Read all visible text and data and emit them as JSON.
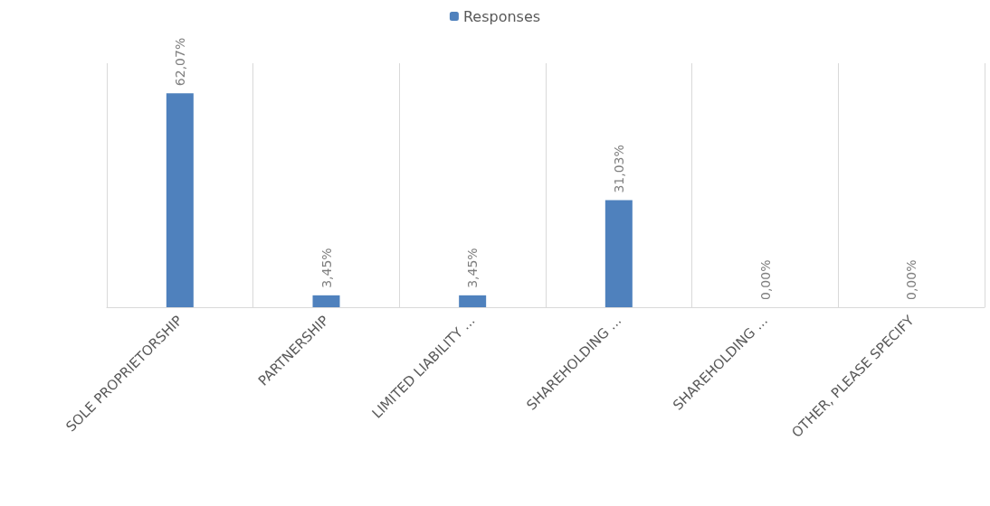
{
  "chart_data": {
    "type": "bar",
    "categories": [
      "SOLE PROPRIETORSHIP",
      "PARTNERSHIP",
      "LIMITED LIABILITY ...",
      "SHAREHOLDING ...",
      "SHAREHOLDING ...",
      "OTHER, PLEASE SPECIFY"
    ],
    "series": [
      {
        "name": "Responses",
        "color": "#4f81bd",
        "values": [
          62.07,
          3.45,
          3.45,
          31.03,
          0,
          0
        ],
        "value_labels": [
          "62,07%",
          "3,45%",
          "3,45%",
          "31,03%",
          "0,00%",
          "0,00%"
        ]
      }
    ],
    "legend": "top",
    "grid": "x"
  }
}
